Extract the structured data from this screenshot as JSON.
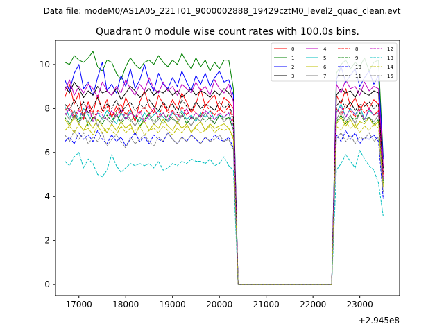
{
  "header": {
    "data_file": "Data file: modeM0/AS1A05_221T01_9000002888_19429cztM0_level2_quad_clean.evt"
  },
  "chart_data": {
    "type": "line",
    "title": "Quadrant 0 module wise count rates with 100.0s bins.",
    "xlabel": "",
    "ylabel": "",
    "x_offset_label": "+2.945e8",
    "xlim": [
      16500,
      23850
    ],
    "ylim": [
      -0.5,
      11.1
    ],
    "x_ticks": [
      17000,
      18000,
      19000,
      20000,
      21000,
      22000,
      23000
    ],
    "x_tick_labels": [
      "17000",
      "18000",
      "19000",
      "20000",
      "21000",
      "22000",
      "23000"
    ],
    "y_ticks": [
      0,
      2,
      4,
      6,
      8,
      10
    ],
    "y_tick_labels": [
      "0",
      "2",
      "4",
      "6",
      "8",
      "10"
    ],
    "grid": false,
    "legend": {
      "placement": "top-right",
      "columns": 4
    },
    "segments": [
      {
        "x_start": 16700,
        "x_step": 100,
        "count": 37
      },
      {
        "x_start": 20400,
        "x_step": 100,
        "count": 21
      },
      {
        "x_start": 22500,
        "x_step": 100,
        "count": 11
      }
    ],
    "series": [
      {
        "name": "0",
        "color": "#ff0000",
        "dash": "solid",
        "values": [
          8.5,
          9.1,
          8.2,
          8.7,
          7.5,
          8.3,
          7.8,
          8.6,
          7.9,
          8.4,
          7.6,
          8.1,
          7.7,
          8.5,
          8.0,
          7.4,
          8.3,
          8.8,
          8.1,
          7.8,
          8.6,
          8.2,
          7.9,
          8.4,
          8.0,
          8.7,
          8.3,
          7.8,
          8.2,
          8.9,
          8.1,
          8.4,
          8.6,
          7.9,
          8.5,
          8.3,
          8.0,
          0.0,
          0.0,
          0.0,
          0.0,
          0.0,
          0.0,
          0.0,
          0.0,
          0.0,
          0.0,
          0.0,
          0.0,
          0.0,
          0.0,
          0.0,
          0.0,
          0.0,
          0.0,
          0.0,
          0.0,
          0.0,
          8.6,
          8.2,
          8.9,
          8.1,
          8.5,
          7.9,
          8.3,
          8.0,
          8.4,
          8.2,
          5.0
        ]
      },
      {
        "name": "1",
        "color": "#008000",
        "dash": "solid",
        "values": [
          10.1,
          10.0,
          10.4,
          10.2,
          10.1,
          10.3,
          10.6,
          9.9,
          9.7,
          10.2,
          10.1,
          9.6,
          9.3,
          9.9,
          10.3,
          10.0,
          9.8,
          10.1,
          10.2,
          10.0,
          10.4,
          10.1,
          9.9,
          10.2,
          10.0,
          10.5,
          10.1,
          9.8,
          10.3,
          9.9,
          10.2,
          9.7,
          10.1,
          9.8,
          10.2,
          10.2,
          8.9,
          0.0,
          0.0,
          0.0,
          0.0,
          0.0,
          0.0,
          0.0,
          0.0,
          0.0,
          0.0,
          0.0,
          0.0,
          0.0,
          0.0,
          0.0,
          0.0,
          0.0,
          0.0,
          0.0,
          0.0,
          0.0,
          9.6,
          10.0,
          10.2,
          9.8,
          10.1,
          9.9,
          10.3,
          9.7,
          10.1,
          10.2,
          5.8
        ]
      },
      {
        "name": "2",
        "color": "#0000ff",
        "dash": "solid",
        "values": [
          9.3,
          8.8,
          9.6,
          10.0,
          8.9,
          9.2,
          8.6,
          9.4,
          10.1,
          8.8,
          9.1,
          8.7,
          9.5,
          9.0,
          9.8,
          8.9,
          9.3,
          10.0,
          9.2,
          8.8,
          9.6,
          9.1,
          8.9,
          9.4,
          9.0,
          9.7,
          9.2,
          8.8,
          9.5,
          9.1,
          9.6,
          9.0,
          9.4,
          9.7,
          9.2,
          9.3,
          8.6,
          0.0,
          0.0,
          0.0,
          0.0,
          0.0,
          0.0,
          0.0,
          0.0,
          0.0,
          0.0,
          0.0,
          0.0,
          0.0,
          0.0,
          0.0,
          0.0,
          0.0,
          0.0,
          0.0,
          0.0,
          0.0,
          9.3,
          9.9,
          9.2,
          9.5,
          9.8,
          9.0,
          9.4,
          9.7,
          9.1,
          9.5,
          5.7
        ]
      },
      {
        "name": "3",
        "color": "#000000",
        "dash": "solid",
        "values": [
          9.0,
          8.7,
          9.2,
          8.9,
          8.5,
          8.8,
          8.6,
          9.0,
          8.7,
          8.8,
          8.6,
          8.9,
          8.4,
          8.7,
          9.0,
          8.8,
          8.5,
          8.7,
          8.9,
          8.6,
          8.8,
          8.7,
          8.9,
          8.6,
          8.8,
          8.5,
          8.7,
          8.9,
          8.6,
          8.8,
          8.7,
          8.5,
          8.8,
          8.6,
          8.9,
          8.7,
          8.4,
          0.0,
          0.0,
          0.0,
          0.0,
          0.0,
          0.0,
          0.0,
          0.0,
          0.0,
          0.0,
          0.0,
          0.0,
          0.0,
          0.0,
          0.0,
          0.0,
          0.0,
          0.0,
          0.0,
          0.0,
          0.0,
          8.6,
          8.9,
          8.7,
          8.8,
          8.5,
          8.9,
          8.7,
          8.6,
          8.8,
          8.7,
          5.3
        ]
      },
      {
        "name": "4",
        "color": "#bf00bf",
        "dash": "solid",
        "values": [
          8.8,
          9.3,
          8.6,
          9.0,
          8.7,
          9.1,
          8.9,
          8.5,
          9.2,
          8.8,
          8.6,
          9.0,
          8.7,
          9.3,
          8.9,
          8.6,
          9.1,
          8.8,
          9.4,
          8.9,
          8.7,
          9.2,
          8.8,
          9.0,
          8.6,
          9.1,
          8.9,
          8.7,
          9.2,
          8.8,
          9.0,
          8.6,
          9.3,
          8.9,
          8.7,
          9.1,
          8.3,
          0.0,
          0.0,
          0.0,
          0.0,
          0.0,
          0.0,
          0.0,
          0.0,
          0.0,
          0.0,
          0.0,
          0.0,
          0.0,
          0.0,
          0.0,
          0.0,
          0.0,
          0.0,
          0.0,
          0.0,
          0.0,
          9.1,
          8.7,
          9.3,
          8.9,
          9.0,
          8.6,
          9.2,
          8.8,
          9.0,
          8.9,
          5.4
        ]
      },
      {
        "name": "5",
        "color": "#00bfbf",
        "dash": "solid",
        "values": [
          8.1,
          7.6,
          7.9,
          7.5,
          8.0,
          7.7,
          7.4,
          7.8,
          7.5,
          7.9,
          7.6,
          7.3,
          7.8,
          7.5,
          7.9,
          7.6,
          7.4,
          7.8,
          7.5,
          7.7,
          7.9,
          7.6,
          7.4,
          7.8,
          7.6,
          7.9,
          7.5,
          7.7,
          7.4,
          7.8,
          7.6,
          7.9,
          7.5,
          7.7,
          7.6,
          7.8,
          7.2,
          0.0,
          0.0,
          0.0,
          0.0,
          0.0,
          0.0,
          0.0,
          0.0,
          0.0,
          0.0,
          0.0,
          0.0,
          0.0,
          0.0,
          0.0,
          0.0,
          0.0,
          0.0,
          0.0,
          0.0,
          0.0,
          7.8,
          8.2,
          7.6,
          8.0,
          7.7,
          8.1,
          7.5,
          7.9,
          7.7,
          7.8,
          4.8
        ]
      },
      {
        "name": "6",
        "color": "#bfbf00",
        "dash": "solid",
        "values": [
          7.5,
          7.2,
          7.6,
          7.3,
          7.0,
          7.4,
          7.1,
          7.5,
          7.2,
          6.9,
          7.3,
          7.0,
          7.4,
          7.1,
          7.3,
          6.8,
          7.2,
          7.4,
          7.0,
          7.3,
          7.1,
          7.5,
          7.2,
          7.0,
          7.4,
          7.1,
          7.3,
          6.9,
          7.2,
          7.4,
          7.0,
          7.3,
          7.1,
          7.2,
          7.3,
          7.1,
          6.7,
          0.0,
          0.0,
          0.0,
          0.0,
          0.0,
          0.0,
          0.0,
          0.0,
          0.0,
          0.0,
          0.0,
          0.0,
          0.0,
          0.0,
          0.0,
          0.0,
          0.0,
          0.0,
          0.0,
          0.0,
          0.0,
          7.3,
          7.6,
          7.2,
          7.5,
          7.1,
          7.4,
          7.3,
          7.6,
          7.2,
          7.4,
          4.5
        ]
      },
      {
        "name": "7",
        "color": "#808080",
        "dash": "solid",
        "values": [
          7.8,
          7.5,
          7.9,
          7.3,
          7.7,
          7.4,
          7.8,
          7.2,
          7.6,
          7.5,
          7.3,
          7.7,
          7.4,
          7.8,
          7.5,
          7.2,
          7.6,
          7.4,
          7.7,
          7.3,
          7.5,
          7.8,
          7.4,
          7.6,
          7.3,
          7.7,
          7.5,
          7.2,
          7.6,
          7.4,
          7.8,
          7.5,
          7.3,
          7.7,
          7.4,
          7.6,
          7.0,
          0.0,
          0.0,
          0.0,
          0.0,
          0.0,
          0.0,
          0.0,
          0.0,
          0.0,
          0.0,
          0.0,
          0.0,
          0.0,
          0.0,
          0.0,
          0.0,
          0.0,
          0.0,
          0.0,
          0.0,
          0.0,
          7.5,
          7.9,
          7.4,
          7.7,
          7.3,
          7.8,
          7.5,
          7.6,
          7.4,
          7.7,
          4.7
        ]
      },
      {
        "name": "8",
        "color": "#ff0000",
        "dash": "dashed",
        "values": [
          7.9,
          8.2,
          7.6,
          8.0,
          7.7,
          8.3,
          7.5,
          7.9,
          7.8,
          8.1,
          7.6,
          7.9,
          8.2,
          7.7,
          8.0,
          7.5,
          7.8,
          8.1,
          7.7,
          8.0,
          7.6,
          8.2,
          7.8,
          7.9,
          7.5,
          8.1,
          7.7,
          8.0,
          7.8,
          7.6,
          8.2,
          7.9,
          7.7,
          8.0,
          7.8,
          8.1,
          7.4,
          0.0,
          0.0,
          0.0,
          0.0,
          0.0,
          0.0,
          0.0,
          0.0,
          0.0,
          0.0,
          0.0,
          0.0,
          0.0,
          0.0,
          0.0,
          0.0,
          0.0,
          0.0,
          0.0,
          0.0,
          0.0,
          8.0,
          7.7,
          8.2,
          7.9,
          7.6,
          8.1,
          7.8,
          8.0,
          7.7,
          7.9,
          4.9
        ]
      },
      {
        "name": "9",
        "color": "#008000",
        "dash": "dashed",
        "values": [
          7.6,
          7.3,
          7.7,
          7.4,
          7.8,
          7.2,
          7.6,
          7.5,
          7.3,
          7.7,
          7.4,
          7.8,
          7.3,
          7.6,
          7.4,
          7.7,
          7.2,
          7.5,
          7.8,
          7.4,
          7.6,
          7.3,
          7.7,
          7.5,
          7.4,
          7.8,
          7.3,
          7.6,
          7.5,
          7.7,
          7.4,
          7.6,
          7.3,
          7.7,
          7.5,
          7.6,
          7.1,
          0.0,
          0.0,
          0.0,
          0.0,
          0.0,
          0.0,
          0.0,
          0.0,
          0.0,
          0.0,
          0.0,
          0.0,
          0.0,
          0.0,
          0.0,
          0.0,
          0.0,
          0.0,
          0.0,
          0.0,
          0.0,
          7.4,
          7.7,
          7.3,
          7.6,
          7.5,
          7.8,
          7.4,
          7.6,
          7.3,
          7.5,
          4.6
        ]
      },
      {
        "name": "10",
        "color": "#0000ff",
        "dash": "dashed",
        "values": [
          6.5,
          6.7,
          6.4,
          6.9,
          6.6,
          6.8,
          6.5,
          7.0,
          6.6,
          6.4,
          6.8,
          6.5,
          6.7,
          6.3,
          6.6,
          6.9,
          6.5,
          6.7,
          6.4,
          6.8,
          6.6,
          6.5,
          6.9,
          6.6,
          6.4,
          6.7,
          6.5,
          6.8,
          6.6,
          6.4,
          6.7,
          6.5,
          6.8,
          6.6,
          6.5,
          6.7,
          6.2,
          0.0,
          0.0,
          0.0,
          0.0,
          0.0,
          0.0,
          0.0,
          0.0,
          0.0,
          0.0,
          0.0,
          0.0,
          0.0,
          0.0,
          0.0,
          0.0,
          0.0,
          0.0,
          0.0,
          0.0,
          0.0,
          6.8,
          6.5,
          7.0,
          6.6,
          6.9,
          6.4,
          6.7,
          6.6,
          6.8,
          6.5,
          3.9
        ]
      },
      {
        "name": "11",
        "color": "#000000",
        "dash": "dashed",
        "values": [
          8.2,
          7.9,
          8.4,
          8.0,
          8.3,
          7.8,
          8.1,
          8.5,
          7.9,
          8.2,
          8.0,
          8.4,
          7.8,
          8.1,
          8.3,
          7.9,
          8.2,
          8.0,
          8.4,
          8.1,
          7.9,
          8.3,
          8.0,
          8.2,
          7.8,
          8.4,
          8.1,
          7.9,
          8.3,
          8.0,
          8.2,
          8.1,
          7.9,
          8.3,
          8.0,
          8.2,
          7.6,
          0.0,
          0.0,
          0.0,
          0.0,
          0.0,
          0.0,
          0.0,
          0.0,
          0.0,
          0.0,
          0.0,
          0.0,
          0.0,
          0.0,
          0.0,
          0.0,
          0.0,
          0.0,
          0.0,
          0.0,
          0.0,
          8.1,
          8.4,
          8.0,
          8.3,
          7.9,
          8.2,
          8.1,
          8.3,
          8.0,
          8.2,
          5.1
        ]
      },
      {
        "name": "12",
        "color": "#bf00bf",
        "dash": "dashed",
        "values": [
          7.7,
          8.0,
          7.5,
          7.9,
          7.6,
          8.1,
          7.4,
          7.8,
          7.7,
          7.5,
          7.9,
          7.6,
          8.0,
          7.5,
          7.8,
          7.6,
          7.9,
          7.4,
          7.7,
          8.0,
          7.6,
          7.8,
          7.5,
          7.9,
          7.7,
          7.6,
          8.0,
          7.5,
          7.8,
          7.6,
          7.9,
          7.7,
          7.5,
          7.8,
          7.6,
          7.8,
          7.2,
          0.0,
          0.0,
          0.0,
          0.0,
          0.0,
          0.0,
          0.0,
          0.0,
          0.0,
          0.0,
          0.0,
          0.0,
          0.0,
          0.0,
          0.0,
          0.0,
          0.0,
          0.0,
          0.0,
          0.0,
          0.0,
          7.8,
          8.1,
          7.6,
          8.0,
          7.7,
          7.9,
          7.5,
          8.0,
          7.7,
          7.8,
          4.8
        ]
      },
      {
        "name": "13",
        "color": "#00bfbf",
        "dash": "dashed",
        "values": [
          5.6,
          5.4,
          5.8,
          6.0,
          5.3,
          5.7,
          5.5,
          5.0,
          4.9,
          5.2,
          5.9,
          5.4,
          5.1,
          5.3,
          5.5,
          5.4,
          5.5,
          5.4,
          5.5,
          5.3,
          5.6,
          5.2,
          5.3,
          5.5,
          5.4,
          5.6,
          5.5,
          5.7,
          5.6,
          5.6,
          5.5,
          5.7,
          5.4,
          5.5,
          5.8,
          5.4,
          5.2,
          0.0,
          0.0,
          0.0,
          0.0,
          0.0,
          0.0,
          0.0,
          0.0,
          0.0,
          0.0,
          0.0,
          0.0,
          0.0,
          0.0,
          0.0,
          0.0,
          0.0,
          0.0,
          0.0,
          0.0,
          0.0,
          5.2,
          5.5,
          5.9,
          5.6,
          5.3,
          6.1,
          5.7,
          5.4,
          5.2,
          4.6,
          3.1
        ]
      },
      {
        "name": "14",
        "color": "#bfbf00",
        "dash": "dashed",
        "values": [
          7.0,
          7.2,
          6.9,
          7.3,
          7.0,
          7.1,
          6.8,
          7.2,
          6.9,
          7.1,
          7.0,
          6.8,
          7.2,
          6.9,
          7.1,
          7.0,
          7.2,
          6.8,
          7.0,
          7.1,
          6.9,
          7.2,
          7.0,
          6.8,
          7.1,
          6.9,
          7.2,
          7.0,
          7.1,
          6.9,
          7.0,
          7.2,
          6.9,
          7.1,
          7.0,
          7.1,
          6.6,
          0.0,
          0.0,
          0.0,
          0.0,
          0.0,
          0.0,
          0.0,
          0.0,
          0.0,
          0.0,
          0.0,
          0.0,
          0.0,
          0.0,
          0.0,
          0.0,
          0.0,
          0.0,
          0.0,
          0.0,
          0.0,
          7.2,
          7.0,
          7.4,
          7.1,
          7.3,
          6.9,
          7.2,
          7.0,
          7.3,
          7.1,
          4.4
        ]
      },
      {
        "name": "15",
        "color": "#808080",
        "dash": "dashed",
        "values": [
          6.8,
          6.5,
          7.0,
          6.6,
          6.9,
          6.4,
          6.7,
          6.5,
          6.9,
          6.3,
          6.6,
          6.8,
          6.5,
          6.2,
          6.7,
          6.4,
          6.6,
          6.8,
          6.5,
          6.3,
          6.7,
          6.5,
          6.9,
          6.6,
          6.4,
          6.7,
          6.5,
          6.8,
          6.6,
          6.4,
          6.7,
          6.5,
          6.6,
          6.8,
          6.5,
          6.6,
          6.1,
          0.0,
          0.0,
          0.0,
          0.0,
          0.0,
          0.0,
          0.0,
          0.0,
          0.0,
          0.0,
          0.0,
          0.0,
          0.0,
          0.0,
          0.0,
          0.0,
          0.0,
          0.0,
          0.0,
          0.0,
          0.0,
          6.6,
          6.9,
          6.5,
          6.8,
          6.4,
          6.7,
          6.6,
          6.9,
          6.5,
          6.7,
          4.2
        ]
      }
    ]
  }
}
